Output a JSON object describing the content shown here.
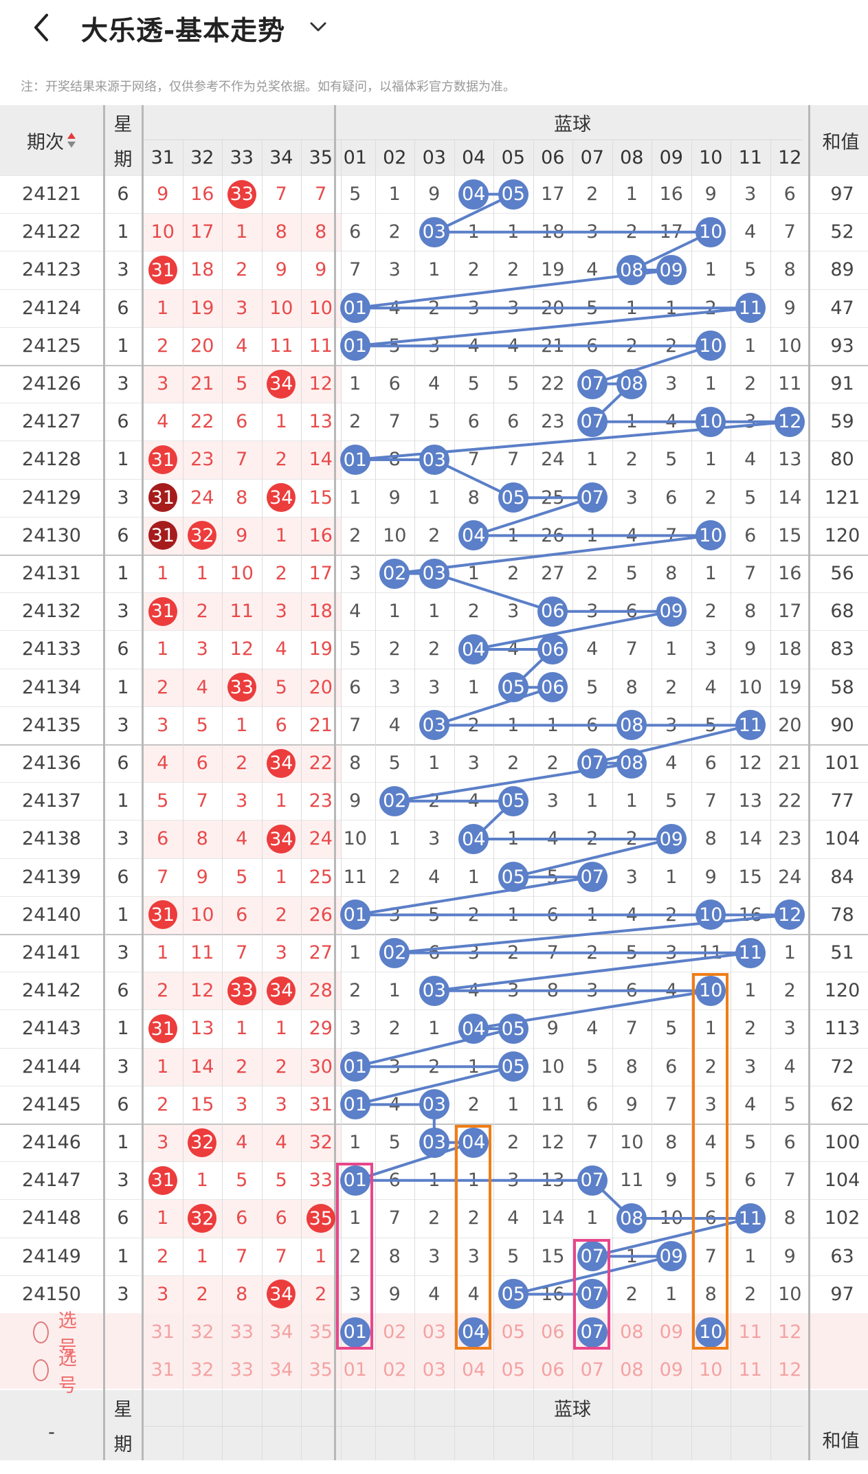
{
  "header": {
    "title": "大乐透-基本走势"
  },
  "notice": "注：开奖结果来源于网络，仅供参考不作为兑奖依据。如有疑问，以福体彩官方数据为准。",
  "table": {
    "col_issue": "期次",
    "col_week_top": "星",
    "col_week_bottom": "期",
    "blue_title": "蓝球",
    "sum_title": "和值",
    "red_cols": [
      "31",
      "32",
      "33",
      "34",
      "35"
    ],
    "blue_cols": [
      "01",
      "02",
      "03",
      "04",
      "05",
      "06",
      "07",
      "08",
      "09",
      "10",
      "11",
      "12"
    ],
    "rows": [
      {
        "issue": "24121",
        "week": "6",
        "red": [
          "9",
          "16",
          "33",
          "7",
          "7"
        ],
        "blue": [
          "5",
          "1",
          "9",
          "04",
          "05",
          "17",
          "2",
          "1",
          "16",
          "9",
          "3",
          "6"
        ],
        "sum": "97"
      },
      {
        "issue": "24122",
        "week": "1",
        "red": [
          "10",
          "17",
          "1",
          "8",
          "8"
        ],
        "blue": [
          "6",
          "2",
          "03",
          "1",
          "1",
          "18",
          "3",
          "2",
          "17",
          "10",
          "4",
          "7"
        ],
        "sum": "52"
      },
      {
        "issue": "24123",
        "week": "3",
        "red": [
          "31",
          "18",
          "2",
          "9",
          "9"
        ],
        "blue": [
          "7",
          "3",
          "1",
          "2",
          "2",
          "19",
          "4",
          "08",
          "09",
          "1",
          "5",
          "8"
        ],
        "sum": "89"
      },
      {
        "issue": "24124",
        "week": "6",
        "red": [
          "1",
          "19",
          "3",
          "10",
          "10"
        ],
        "blue": [
          "01",
          "4",
          "2",
          "3",
          "3",
          "20",
          "5",
          "1",
          "1",
          "2",
          "11",
          "9"
        ],
        "sum": "47"
      },
      {
        "issue": "24125",
        "week": "1",
        "red": [
          "2",
          "20",
          "4",
          "11",
          "11"
        ],
        "blue": [
          "01",
          "5",
          "3",
          "4",
          "4",
          "21",
          "6",
          "2",
          "2",
          "10",
          "1",
          "10"
        ],
        "sum": "93"
      },
      {
        "issue": "24126",
        "week": "3",
        "red": [
          "3",
          "21",
          "5",
          "34",
          "12"
        ],
        "blue": [
          "1",
          "6",
          "4",
          "5",
          "5",
          "22",
          "07",
          "08",
          "3",
          "1",
          "2",
          "11"
        ],
        "sum": "91"
      },
      {
        "issue": "24127",
        "week": "6",
        "red": [
          "4",
          "22",
          "6",
          "1",
          "13"
        ],
        "blue": [
          "2",
          "7",
          "5",
          "6",
          "6",
          "23",
          "07",
          "1",
          "4",
          "10",
          "3",
          "12"
        ],
        "sum": "59"
      },
      {
        "issue": "24128",
        "week": "1",
        "red": [
          "31",
          "23",
          "7",
          "2",
          "14"
        ],
        "blue": [
          "01",
          "8",
          "03",
          "7",
          "7",
          "24",
          "1",
          "2",
          "5",
          "1",
          "4",
          "13"
        ],
        "sum": "80"
      },
      {
        "issue": "24129",
        "week": "3",
        "red": [
          "31",
          "24",
          "8",
          "34",
          "15"
        ],
        "blue": [
          "1",
          "9",
          "1",
          "8",
          "05",
          "25",
          "07",
          "3",
          "6",
          "2",
          "5",
          "14"
        ],
        "sum": "121"
      },
      {
        "issue": "24130",
        "week": "6",
        "red": [
          "31",
          "32",
          "9",
          "1",
          "16"
        ],
        "blue": [
          "2",
          "10",
          "2",
          "04",
          "1",
          "26",
          "1",
          "4",
          "7",
          "10",
          "6",
          "15"
        ],
        "sum": "120"
      },
      {
        "issue": "24131",
        "week": "1",
        "red": [
          "1",
          "1",
          "10",
          "2",
          "17"
        ],
        "blue": [
          "3",
          "02",
          "03",
          "1",
          "2",
          "27",
          "2",
          "5",
          "8",
          "1",
          "7",
          "16"
        ],
        "sum": "56"
      },
      {
        "issue": "24132",
        "week": "3",
        "red": [
          "31",
          "2",
          "11",
          "3",
          "18"
        ],
        "blue": [
          "4",
          "1",
          "1",
          "2",
          "3",
          "06",
          "3",
          "6",
          "09",
          "2",
          "8",
          "17"
        ],
        "sum": "68"
      },
      {
        "issue": "24133",
        "week": "6",
        "red": [
          "1",
          "3",
          "12",
          "4",
          "19"
        ],
        "blue": [
          "5",
          "2",
          "2",
          "04",
          "4",
          "06",
          "4",
          "7",
          "1",
          "3",
          "9",
          "18"
        ],
        "sum": "83"
      },
      {
        "issue": "24134",
        "week": "1",
        "red": [
          "2",
          "4",
          "33",
          "5",
          "20"
        ],
        "blue": [
          "6",
          "3",
          "3",
          "1",
          "05",
          "06",
          "5",
          "8",
          "2",
          "4",
          "10",
          "19"
        ],
        "sum": "58"
      },
      {
        "issue": "24135",
        "week": "3",
        "red": [
          "3",
          "5",
          "1",
          "6",
          "21"
        ],
        "blue": [
          "7",
          "4",
          "03",
          "2",
          "1",
          "1",
          "6",
          "08",
          "3",
          "5",
          "11",
          "20"
        ],
        "sum": "90"
      },
      {
        "issue": "24136",
        "week": "6",
        "red": [
          "4",
          "6",
          "2",
          "34",
          "22"
        ],
        "blue": [
          "8",
          "5",
          "1",
          "3",
          "2",
          "2",
          "07",
          "08",
          "4",
          "6",
          "12",
          "21"
        ],
        "sum": "101"
      },
      {
        "issue": "24137",
        "week": "1",
        "red": [
          "5",
          "7",
          "3",
          "1",
          "23"
        ],
        "blue": [
          "9",
          "02",
          "2",
          "4",
          "05",
          "3",
          "1",
          "1",
          "5",
          "7",
          "13",
          "22"
        ],
        "sum": "77"
      },
      {
        "issue": "24138",
        "week": "3",
        "red": [
          "6",
          "8",
          "4",
          "34",
          "24"
        ],
        "blue": [
          "10",
          "1",
          "3",
          "04",
          "1",
          "4",
          "2",
          "2",
          "09",
          "8",
          "14",
          "23"
        ],
        "sum": "104"
      },
      {
        "issue": "24139",
        "week": "6",
        "red": [
          "7",
          "9",
          "5",
          "1",
          "25"
        ],
        "blue": [
          "11",
          "2",
          "4",
          "1",
          "05",
          "5",
          "07",
          "3",
          "1",
          "9",
          "15",
          "24"
        ],
        "sum": "84"
      },
      {
        "issue": "24140",
        "week": "1",
        "red": [
          "31",
          "10",
          "6",
          "2",
          "26"
        ],
        "blue": [
          "01",
          "3",
          "5",
          "2",
          "1",
          "6",
          "1",
          "4",
          "2",
          "10",
          "16",
          "12"
        ],
        "sum": "78"
      },
      {
        "issue": "24141",
        "week": "3",
        "red": [
          "1",
          "11",
          "7",
          "3",
          "27"
        ],
        "blue": [
          "1",
          "02",
          "6",
          "3",
          "2",
          "7",
          "2",
          "5",
          "3",
          "11",
          "11",
          "1"
        ],
        "sum": "51"
      },
      {
        "issue": "24142",
        "week": "6",
        "red": [
          "2",
          "12",
          "33",
          "34",
          "28"
        ],
        "blue": [
          "2",
          "1",
          "03",
          "4",
          "3",
          "8",
          "3",
          "6",
          "4",
          "10",
          "1",
          "2"
        ],
        "sum": "120"
      },
      {
        "issue": "24143",
        "week": "1",
        "red": [
          "31",
          "13",
          "1",
          "1",
          "29"
        ],
        "blue": [
          "3",
          "2",
          "1",
          "04",
          "05",
          "9",
          "4",
          "7",
          "5",
          "1",
          "2",
          "3"
        ],
        "sum": "113"
      },
      {
        "issue": "24144",
        "week": "3",
        "red": [
          "1",
          "14",
          "2",
          "2",
          "30"
        ],
        "blue": [
          "01",
          "3",
          "2",
          "1",
          "05",
          "10",
          "5",
          "8",
          "6",
          "2",
          "3",
          "4"
        ],
        "sum": "72"
      },
      {
        "issue": "24145",
        "week": "6",
        "red": [
          "2",
          "15",
          "3",
          "3",
          "31"
        ],
        "blue": [
          "01",
          "4",
          "03",
          "2",
          "1",
          "11",
          "6",
          "9",
          "7",
          "3",
          "4",
          "5"
        ],
        "sum": "62"
      },
      {
        "issue": "24146",
        "week": "1",
        "red": [
          "3",
          "32",
          "4",
          "4",
          "32"
        ],
        "blue": [
          "1",
          "5",
          "03",
          "04",
          "2",
          "12",
          "7",
          "10",
          "8",
          "4",
          "5",
          "6"
        ],
        "sum": "100"
      },
      {
        "issue": "24147",
        "week": "3",
        "red": [
          "31",
          "1",
          "5",
          "5",
          "33"
        ],
        "blue": [
          "01",
          "6",
          "1",
          "1",
          "3",
          "13",
          "07",
          "11",
          "9",
          "5",
          "6",
          "7"
        ],
        "sum": "104"
      },
      {
        "issue": "24148",
        "week": "6",
        "red": [
          "1",
          "32",
          "6",
          "6",
          "35"
        ],
        "blue": [
          "1",
          "7",
          "2",
          "2",
          "4",
          "14",
          "1",
          "08",
          "10",
          "6",
          "11",
          "8"
        ],
        "sum": "102"
      },
      {
        "issue": "24149",
        "week": "1",
        "red": [
          "2",
          "1",
          "7",
          "7",
          "1"
        ],
        "blue": [
          "2",
          "8",
          "3",
          "3",
          "5",
          "15",
          "07",
          "1",
          "09",
          "7",
          "1",
          "9"
        ],
        "sum": "63"
      },
      {
        "issue": "24150",
        "week": "3",
        "red": [
          "3",
          "2",
          "8",
          "34",
          "2"
        ],
        "blue": [
          "3",
          "9",
          "4",
          "4",
          "05",
          "16",
          "07",
          "2",
          "1",
          "8",
          "2",
          "10"
        ],
        "sum": "97"
      }
    ],
    "picker_label": "选号",
    "footer_issue": "-"
  },
  "colors": {
    "blue_ball": "#5b7fc8",
    "red_ball": "#ec3c3c",
    "dark_red_ball": "#a61c1c",
    "highlight_orange": "#f07d16",
    "highlight_pink": "#e8468a"
  }
}
